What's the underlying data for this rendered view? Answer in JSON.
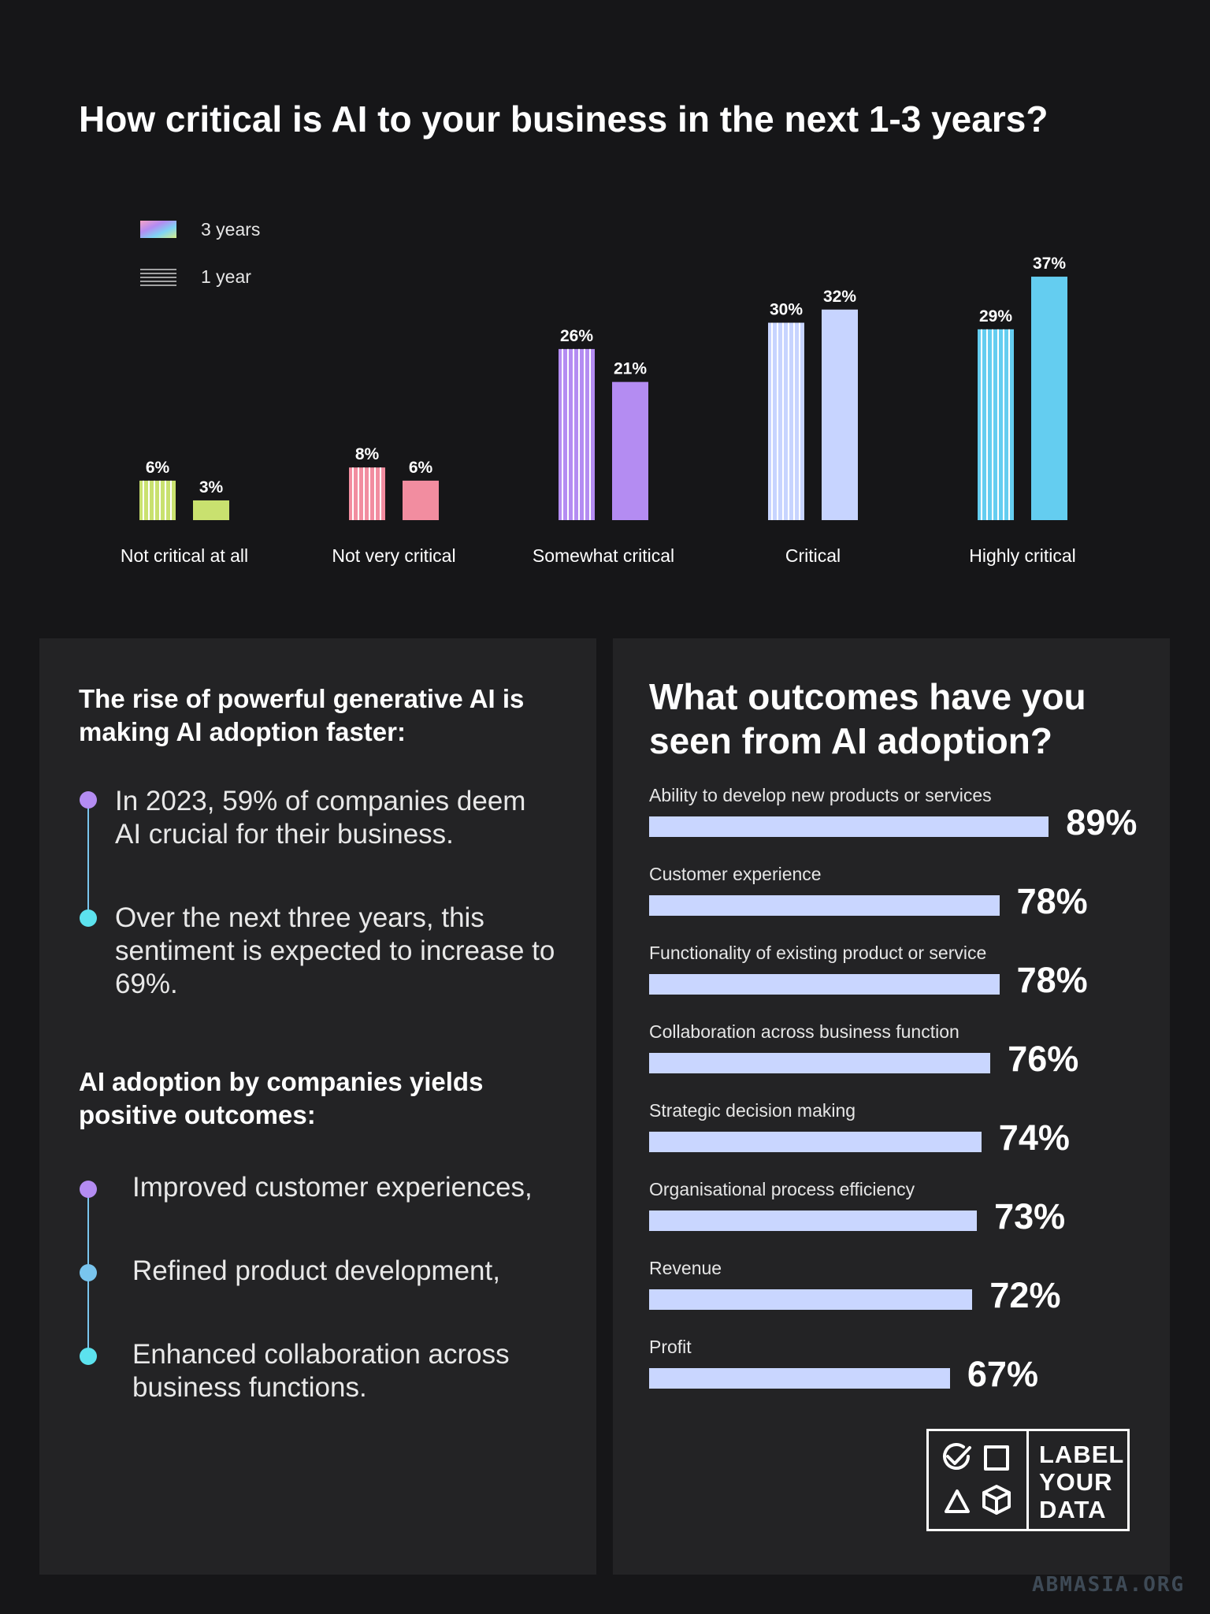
{
  "chart_data": {
    "type": "bar",
    "title": "How critical is AI to your business in the next 1-3 years?",
    "categories": [
      "Not critical at all",
      "Not very critical",
      "Somewhat critical",
      "Critical",
      "Highly critical"
    ],
    "series": [
      {
        "name": "1 year",
        "values": [
          6,
          8,
          26,
          30,
          29
        ],
        "labels": [
          "6%",
          "8%",
          "26%",
          "30%",
          "29%"
        ]
      },
      {
        "name": "3 years",
        "values": [
          3,
          6,
          21,
          32,
          37
        ],
        "labels": [
          "3%",
          "6%",
          "21%",
          "32%",
          "37%"
        ]
      }
    ],
    "category_colors": [
      "#c9e16f",
      "#f28da0",
      "#b48cf2",
      "#c7d4ff",
      "#64cdf0"
    ],
    "ylim": [
      0,
      40
    ],
    "grid": false,
    "legend": {
      "placement": "top-left",
      "entries": [
        "3 years",
        "1 year"
      ]
    }
  },
  "left_panel": {
    "heading1": "The rise of powerful generative AI is making AI adoption faster:",
    "points1": [
      "In 2023, 59% of companies deem AI crucial for their business.",
      "Over the next three years, this sentiment is expected to increase to 69%."
    ],
    "heading2": "AI adoption by companies yields positive outcomes:",
    "points2": [
      "Improved customer experiences,",
      "Refined product development,",
      "Enhanced collaboration across business functions."
    ]
  },
  "right_panel": {
    "chart_data": {
      "type": "bar",
      "title": "What outcomes have you seen from AI adoption?",
      "categories": [
        "Ability to develop new products or services",
        "Customer experience",
        "Functionality of existing product or service",
        "Collaboration across business function",
        "Strategic decision making",
        "Organisational process efficiency",
        "Revenue",
        "Profit"
      ],
      "values": [
        89,
        78,
        78,
        76,
        74,
        73,
        72,
        67
      ],
      "labels": [
        "89%",
        "78%",
        "78%",
        "76%",
        "74%",
        "73%",
        "72%",
        "67%"
      ],
      "bar_color": "#c9d6ff"
    }
  },
  "logo": {
    "lines": [
      "LABEL",
      "YOUR",
      "DATA"
    ]
  },
  "watermark": "ABMASIA.ORG"
}
